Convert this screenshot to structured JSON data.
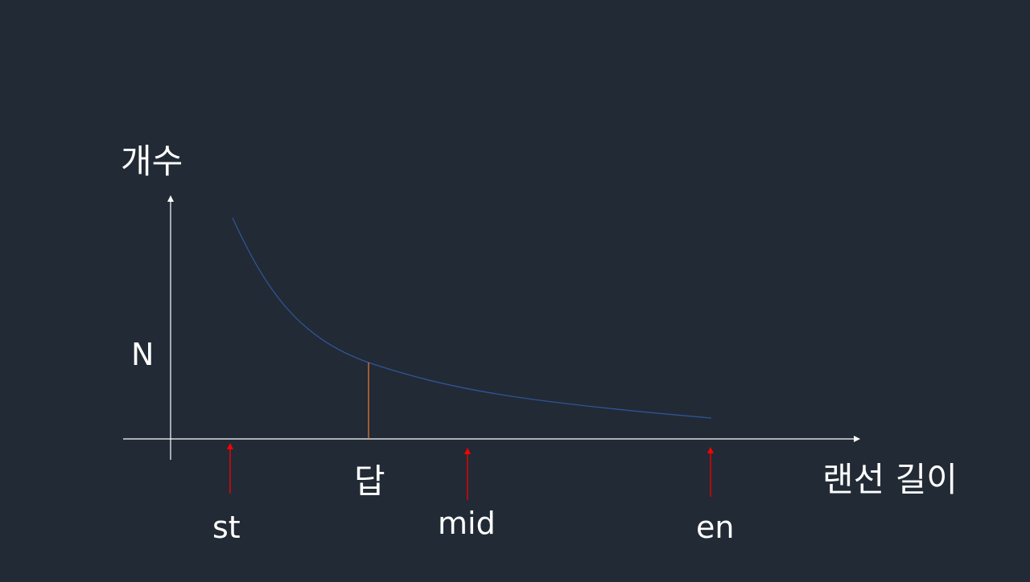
{
  "axes": {
    "y_label": "개수",
    "x_label": "랜선 길이",
    "target_label": "N"
  },
  "answer_label": "답",
  "pointers": {
    "st": "st",
    "mid": "mid",
    "en": "en"
  },
  "colors": {
    "background": "#222a35",
    "axis": "#ffffff",
    "curve": "#2f5597",
    "answer_line": "#ed7d31",
    "pointer_arrow": "#ff0000"
  }
}
